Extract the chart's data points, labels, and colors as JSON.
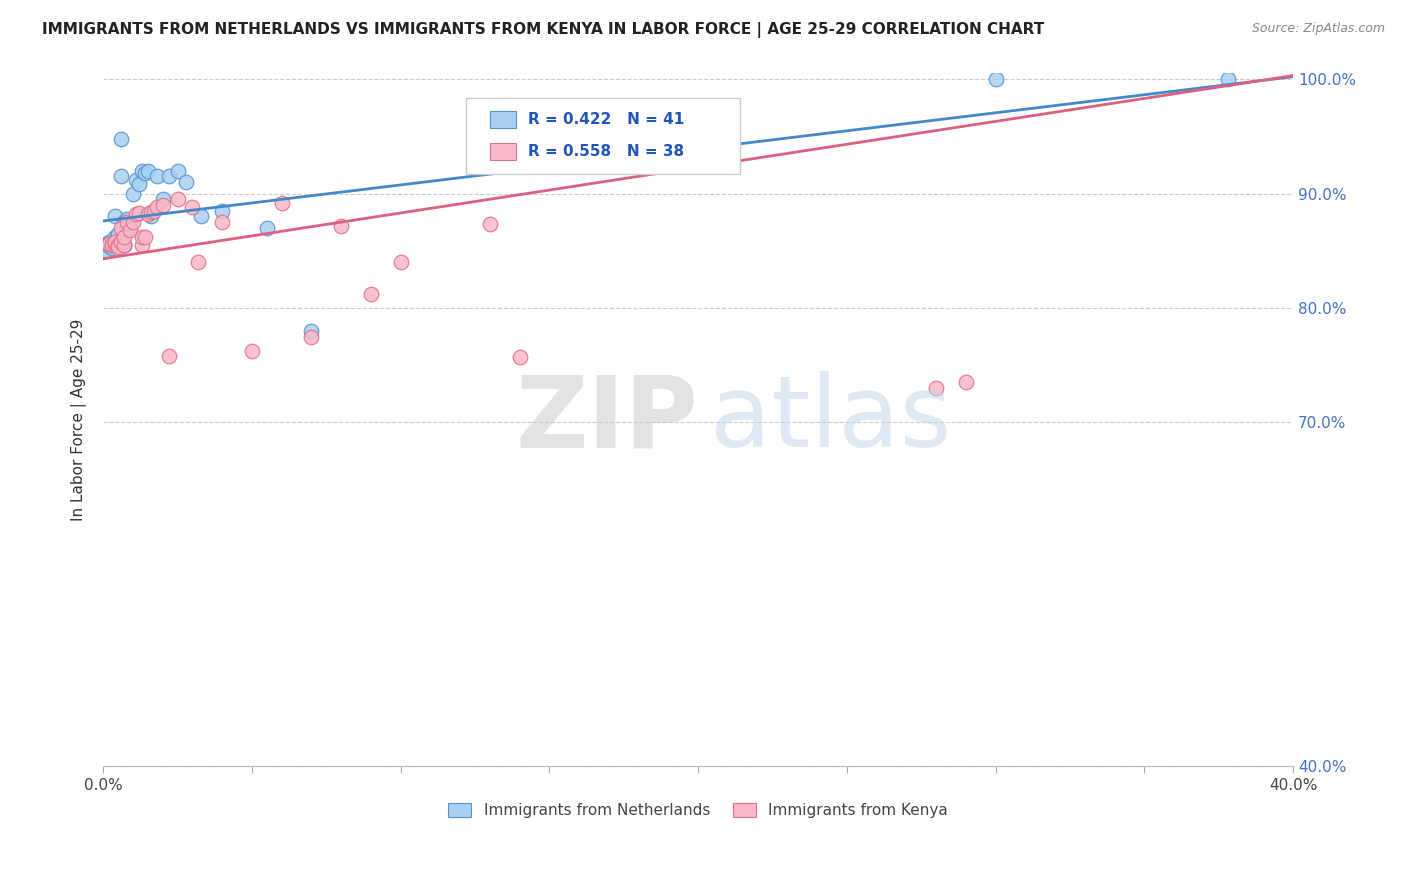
{
  "title": "IMMIGRANTS FROM NETHERLANDS VS IMMIGRANTS FROM KENYA IN LABOR FORCE | AGE 25-29 CORRELATION CHART",
  "source": "Source: ZipAtlas.com",
  "ylabel": "In Labor Force | Age 25-29",
  "xlim": [
    0.0,
    0.4
  ],
  "ylim": [
    0.4,
    1.005
  ],
  "xtick_positions": [
    0.0,
    0.05,
    0.1,
    0.15,
    0.2,
    0.25,
    0.3,
    0.35,
    0.4
  ],
  "xtick_labels": [
    "0.0%",
    "",
    "",
    "",
    "",
    "",
    "",
    "",
    "40.0%"
  ],
  "ytick_positions": [
    0.4,
    0.7,
    0.8,
    0.9,
    1.0
  ],
  "ytick_labels": [
    "40.0%",
    "70.0%",
    "80.0%",
    "90.0%",
    "100.0%"
  ],
  "blue_fill": "#A8D0F0",
  "blue_edge": "#5590D0",
  "pink_fill": "#F8B8C8",
  "pink_edge": "#E07088",
  "blue_line": "#4488CC",
  "pink_line": "#DD6080",
  "r_blue": 0.422,
  "n_blue": 41,
  "r_pink": 0.558,
  "n_pink": 38,
  "legend_label_blue": "Immigrants from Netherlands",
  "legend_label_pink": "Immigrants from Kenya",
  "blue_x": [
    0.001,
    0.001,
    0.002,
    0.002,
    0.002,
    0.003,
    0.003,
    0.003,
    0.003,
    0.004,
    0.004,
    0.004,
    0.005,
    0.005,
    0.005,
    0.006,
    0.006,
    0.007,
    0.007,
    0.007,
    0.008,
    0.008,
    0.009,
    0.01,
    0.011,
    0.012,
    0.013,
    0.014,
    0.015,
    0.016,
    0.018,
    0.02,
    0.022,
    0.025,
    0.028,
    0.033,
    0.04,
    0.055,
    0.07,
    0.3,
    0.378
  ],
  "blue_y": [
    0.856,
    0.85,
    0.858,
    0.856,
    0.854,
    0.857,
    0.856,
    0.854,
    0.852,
    0.88,
    0.862,
    0.855,
    0.864,
    0.865,
    0.855,
    0.948,
    0.915,
    0.855,
    0.875,
    0.855,
    0.878,
    0.87,
    0.87,
    0.9,
    0.912,
    0.908,
    0.92,
    0.918,
    0.92,
    0.88,
    0.915,
    0.895,
    0.915,
    0.92,
    0.91,
    0.88,
    0.885,
    0.87,
    0.78,
    1.0,
    1.0
  ],
  "pink_x": [
    0.002,
    0.003,
    0.004,
    0.004,
    0.005,
    0.005,
    0.006,
    0.006,
    0.007,
    0.007,
    0.008,
    0.009,
    0.01,
    0.011,
    0.012,
    0.013,
    0.013,
    0.014,
    0.015,
    0.016,
    0.017,
    0.018,
    0.02,
    0.022,
    0.025,
    0.03,
    0.032,
    0.04,
    0.05,
    0.06,
    0.07,
    0.08,
    0.09,
    0.1,
    0.13,
    0.14,
    0.28,
    0.29
  ],
  "pink_y": [
    0.856,
    0.855,
    0.855,
    0.858,
    0.855,
    0.853,
    0.858,
    0.87,
    0.855,
    0.862,
    0.875,
    0.868,
    0.875,
    0.882,
    0.883,
    0.855,
    0.862,
    0.862,
    0.882,
    0.884,
    0.885,
    0.888,
    0.89,
    0.758,
    0.895,
    0.888,
    0.84,
    0.875,
    0.762,
    0.892,
    0.775,
    0.872,
    0.812,
    0.84,
    0.873,
    0.757,
    0.73,
    0.735
  ],
  "watermark_zip": "ZIP",
  "watermark_atlas": "atlas",
  "watermark_zip_color": "#C8C8C8",
  "watermark_atlas_color": "#C0D4EE"
}
